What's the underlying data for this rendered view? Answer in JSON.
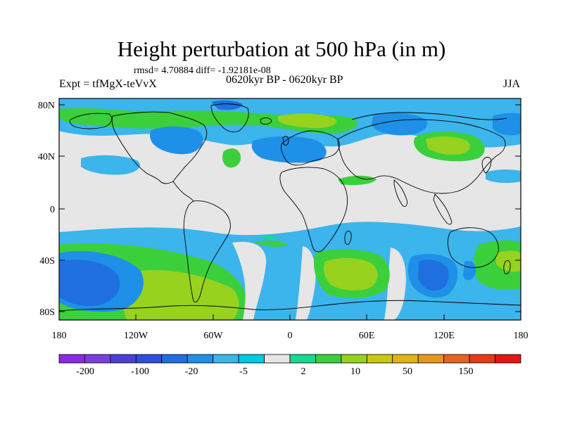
{
  "title": "Height perturbation at 500 hPa (in m)",
  "stats": "rmsd= 4.70884 diff= -1.92181e-08",
  "experiment": "Expt = tfMgX-teVvX",
  "period": "0620kyr BP - 0620kyr BP",
  "season": "JJA",
  "lat_labels": [
    "80N",
    "40N",
    "0",
    "40S",
    "80S"
  ],
  "lon_labels": [
    "180",
    "120W",
    "60W",
    "0",
    "60E",
    "120E",
    "180"
  ],
  "colorbar": {
    "colors": [
      "#8a2be2",
      "#7a3fe0",
      "#4b3fd6",
      "#2f4fd8",
      "#1f6fe0",
      "#1e90e8",
      "#3cb4ec",
      "#00c8e6",
      "#e6e6e6",
      "#19d890",
      "#3ccf3c",
      "#96d21e",
      "#c8c814",
      "#e0b414",
      "#e6961e",
      "#e6641e",
      "#e63c14",
      "#e61414"
    ],
    "labels": [
      "-200",
      "-100",
      "-20",
      "-5",
      "2",
      "10",
      "50",
      "150"
    ]
  },
  "colors": {
    "land_bg": "#e6e6e6",
    "coast": "#000000"
  }
}
